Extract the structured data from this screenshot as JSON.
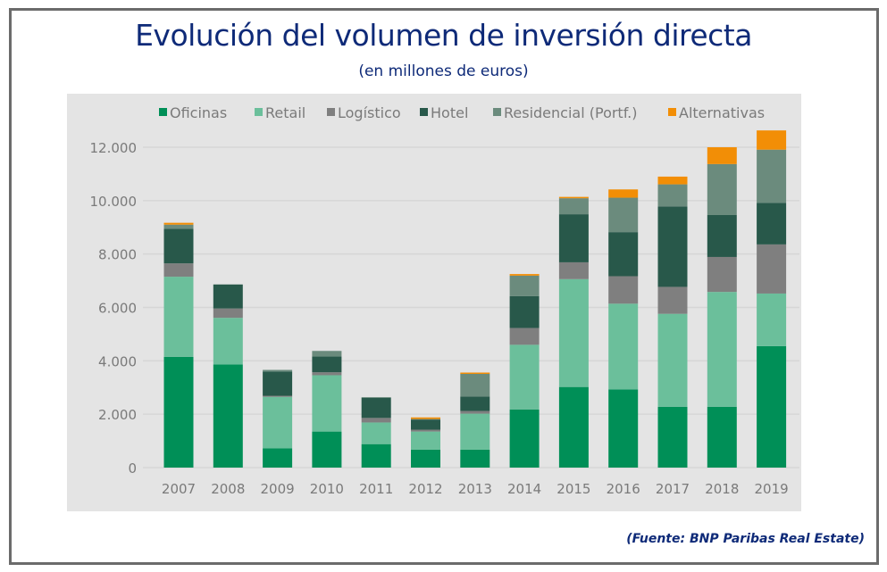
{
  "chart_data": {
    "type": "bar",
    "stacked": true,
    "title": "Evolución del volumen de inversión directa",
    "subtitle": "(en millones de euros)",
    "source": "(Fuente: BNP Paribas Real Estate)",
    "xlabel": "",
    "ylabel": "",
    "ylim": [
      0,
      12000
    ],
    "yticks": [
      0,
      2000,
      4000,
      6000,
      8000,
      10000,
      12000
    ],
    "ytick_labels": [
      "0",
      "2.000",
      "4.000",
      "6.000",
      "8.000",
      "10.000",
      "12.000"
    ],
    "grid": true,
    "legend_position": "top",
    "categories": [
      "2007",
      "2008",
      "2009",
      "2010",
      "2011",
      "2012",
      "2013",
      "2014",
      "2015",
      "2016",
      "2017",
      "2018",
      "2019"
    ],
    "series": [
      {
        "name": "Oficinas",
        "color": "#008f57",
        "values": [
          4150,
          3860,
          720,
          1350,
          880,
          670,
          670,
          2180,
          3020,
          2930,
          2280,
          2280,
          4550
        ]
      },
      {
        "name": "Retail",
        "color": "#6bbf9b",
        "values": [
          3000,
          1750,
          1930,
          2110,
          810,
          680,
          1350,
          2420,
          4040,
          3210,
          3480,
          4300,
          1970
        ]
      },
      {
        "name": "Logístico",
        "color": "#7f7f7f",
        "values": [
          500,
          350,
          40,
          110,
          170,
          70,
          100,
          630,
          630,
          1030,
          1010,
          1310,
          1840
        ]
      },
      {
        "name": "Hotel",
        "color": "#28584a",
        "values": [
          1300,
          900,
          910,
          590,
          750,
          380,
          540,
          1190,
          1800,
          1650,
          3010,
          1570,
          1560
        ]
      },
      {
        "name": "Residencial (Portf.)",
        "color": "#6b8b7d",
        "values": [
          150,
          0,
          60,
          210,
          30,
          20,
          850,
          770,
          600,
          1290,
          830,
          1910,
          1990
        ]
      },
      {
        "name": "Alternativas",
        "color": "#f28e06",
        "values": [
          70,
          0,
          0,
          0,
          0,
          60,
          50,
          60,
          50,
          310,
          290,
          630,
          720
        ]
      }
    ]
  }
}
